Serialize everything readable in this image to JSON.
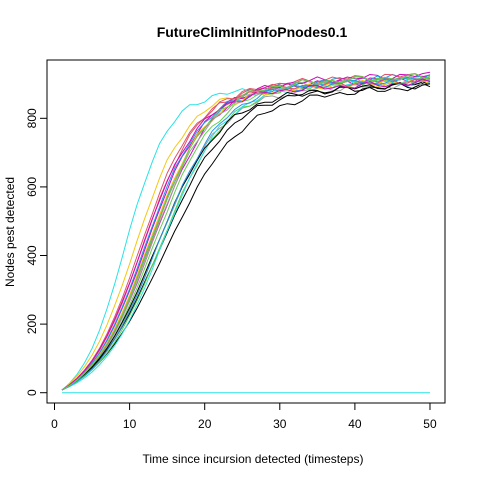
{
  "chart_data": {
    "type": "line",
    "title": "FutureClimInitInfoPnodes0.1",
    "xlabel": "Time since incursion detected (timesteps)",
    "ylabel": "Nodes pest detected",
    "xlim": [
      -1,
      52
    ],
    "ylim": [
      -30,
      970
    ],
    "x_ticks": [
      "0",
      "10",
      "20",
      "30",
      "40",
      "50"
    ],
    "y_ticks": [
      "0",
      "200",
      "400",
      "600",
      "800"
    ],
    "grid": false,
    "legend": "none",
    "n_timesteps": 50,
    "series": [
      {
        "color": "#000000",
        "final": 885,
        "t_half": 14.8,
        "width": 4.9,
        "lw": 1.8
      },
      {
        "color": "#DF536B",
        "final": 915,
        "t_half": 11.8,
        "width": 3.7
      },
      {
        "color": "#61D04F",
        "final": 905,
        "t_half": 13.2,
        "width": 4.0
      },
      {
        "color": "#2297E6",
        "final": 915,
        "t_half": 12.6,
        "width": 3.9
      },
      {
        "color": "#28E2E5",
        "final": 900,
        "t_half": 9.3,
        "width": 2.9
      },
      {
        "color": "#CD0BBC",
        "final": 910,
        "t_half": 12.2,
        "width": 3.8
      },
      {
        "color": "#F5C710",
        "final": 905,
        "t_half": 10.6,
        "width": 3.5
      },
      {
        "color": "#9E9E9E",
        "final": 895,
        "t_half": 13.6,
        "width": 4.2
      },
      {
        "color": "#000000",
        "final": 895,
        "t_half": 14.0,
        "width": 4.6
      },
      {
        "color": "#DF536B",
        "final": 920,
        "t_half": 12.8,
        "width": 3.9
      },
      {
        "color": "#61D04F",
        "final": 910,
        "t_half": 14.2,
        "width": 4.3
      },
      {
        "color": "#2297E6",
        "final": 900,
        "t_half": 12.0,
        "width": 3.7
      },
      {
        "color": "#28E2E5",
        "final": 905,
        "t_half": 14.4,
        "width": 4.1
      },
      {
        "color": "#CD0BBC",
        "final": 920,
        "t_half": 13.0,
        "width": 4.0
      },
      {
        "color": "#F5C710",
        "final": 900,
        "t_half": 12.4,
        "width": 3.8
      },
      {
        "color": "#9E9E9E",
        "final": 910,
        "t_half": 12.9,
        "width": 3.9
      },
      {
        "color": "#000000",
        "final": 890,
        "t_half": 13.4,
        "width": 4.3
      },
      {
        "color": "#DF536B",
        "final": 905,
        "t_half": 11.4,
        "width": 3.6
      },
      {
        "color": "#2297E6",
        "final": 912,
        "t_half": 13.8,
        "width": 4.2
      },
      {
        "color": "#CD0BBC",
        "final": 898,
        "t_half": 11.6,
        "width": 3.7
      },
      {
        "color": "#61D04F",
        "final": 915,
        "t_half": 12.7,
        "width": 3.9
      },
      {
        "color": "#28E2E5",
        "final": 0,
        "t_half": 10.0,
        "width": 1.0
      }
    ]
  }
}
